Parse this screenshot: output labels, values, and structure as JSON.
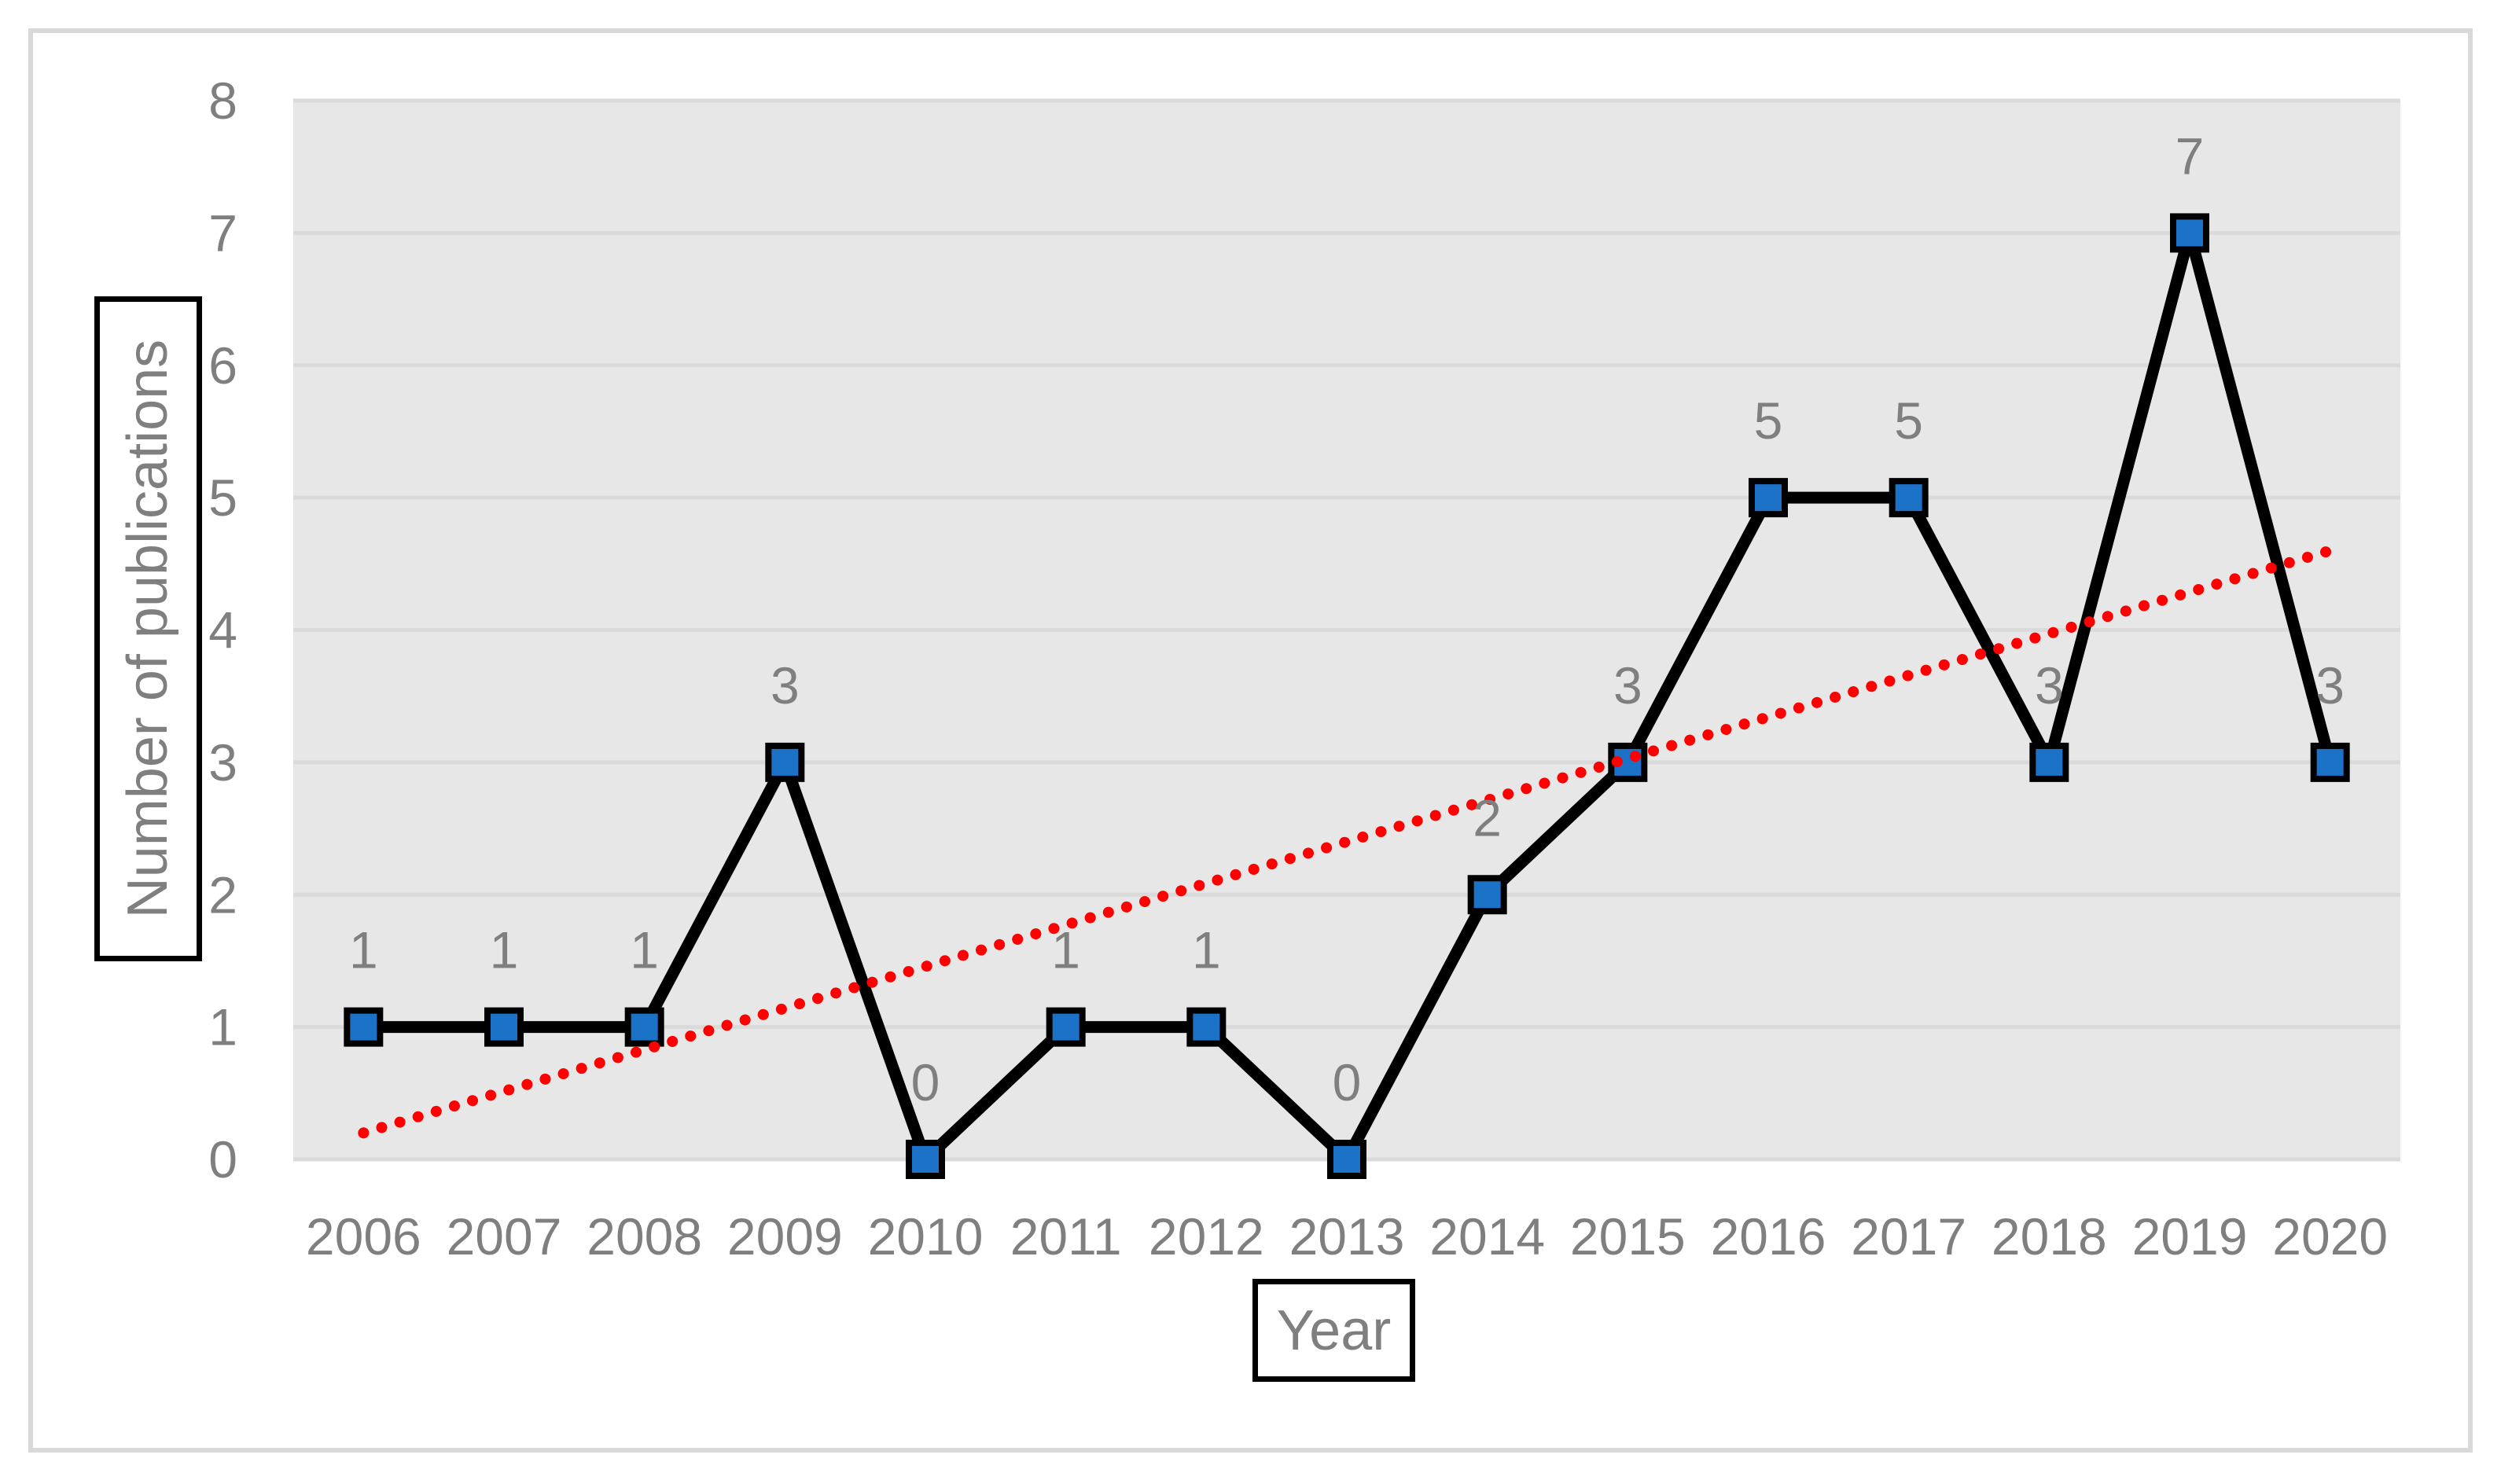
{
  "chart_data": {
    "type": "line",
    "title": "",
    "xlabel": "Year",
    "ylabel": "Number of publications",
    "categories": [
      "2006",
      "2007",
      "2008",
      "2009",
      "2010",
      "2011",
      "2012",
      "2013",
      "2014",
      "2015",
      "2016",
      "2017",
      "2018",
      "2019",
      "2020"
    ],
    "series": [
      {
        "name": "Number of publications",
        "values": [
          1,
          1,
          1,
          3,
          0,
          1,
          1,
          0,
          2,
          3,
          5,
          5,
          3,
          7,
          3
        ],
        "data_labels": [
          "1",
          "1",
          "1",
          "3",
          "0",
          "1",
          "1",
          "0",
          "2",
          "3",
          "5",
          "5",
          "3",
          "7",
          "3"
        ],
        "line_color": "#000000",
        "marker_shape": "square",
        "marker_fill": "#1b72c7",
        "marker_border": "#000000"
      }
    ],
    "trendline": {
      "kind": "linear",
      "start_value": 0.2,
      "end_value": 4.6,
      "color": "#ff0000",
      "style": "dotted"
    },
    "ylim": [
      0,
      8
    ],
    "y_ticks": [
      "0",
      "1",
      "2",
      "3",
      "4",
      "5",
      "6",
      "7",
      "8"
    ],
    "grid": true,
    "legend": "none",
    "plot_bg_color": "#e7e7e7",
    "gridline_color": "#dadada",
    "tick_label_color": "#7f7f7f",
    "data_label_color": "#7f7f7f",
    "axis_title_color": "#7f7f7f",
    "outer_border_color": "#d9d9d9"
  }
}
